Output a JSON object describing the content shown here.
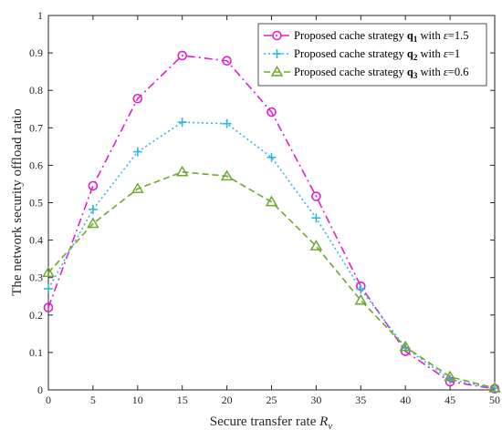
{
  "chart_data": {
    "type": "line",
    "xlabel": "Secure transfer rate",
    "xlabel_var": "R",
    "xlabel_sub": "v",
    "ylabel": "The network security offload ratio",
    "xlim": [
      0,
      50
    ],
    "ylim": [
      0,
      1
    ],
    "xticks": [
      0,
      5,
      10,
      15,
      20,
      25,
      30,
      35,
      40,
      45,
      50
    ],
    "yticks": [
      0,
      0.1,
      0.2,
      0.3,
      0.4,
      0.5,
      0.6,
      0.7,
      0.8,
      0.9,
      1
    ],
    "grid": false,
    "legend_position": "top-right",
    "x": [
      0,
      5,
      10,
      15,
      20,
      25,
      30,
      35,
      40,
      45,
      50
    ],
    "series": [
      {
        "legend_prefix": "Proposed cache strategy",
        "symbol": "q",
        "subscript": "1",
        "legend_with": "with",
        "param_symbol": "ε",
        "param_value": "=1.5",
        "color": "#e020d0",
        "dash": "9 4 2 4",
        "marker": "circle",
        "values": [
          0.22,
          0.545,
          0.778,
          0.893,
          0.879,
          0.742,
          0.517,
          0.277,
          0.103,
          0.022,
          0.003
        ]
      },
      {
        "legend_prefix": "Proposed cache strategy",
        "symbol": "q",
        "subscript": "2",
        "legend_with": "with",
        "param_symbol": "ε",
        "param_value": "=1",
        "color": "#33b6e6",
        "dash": "2 3",
        "marker": "plus",
        "values": [
          0.27,
          0.482,
          0.636,
          0.715,
          0.711,
          0.621,
          0.459,
          0.269,
          0.112,
          0.028,
          0.004
        ]
      },
      {
        "legend_prefix": "Proposed cache strategy",
        "symbol": "q",
        "subscript": "3",
        "legend_with": "with",
        "param_symbol": "ε",
        "param_value": "=0.6",
        "color": "#70a830",
        "dash": "7 4",
        "marker": "triangle",
        "values": [
          0.313,
          0.444,
          0.537,
          0.582,
          0.571,
          0.502,
          0.384,
          0.239,
          0.115,
          0.035,
          0.005
        ]
      }
    ]
  }
}
